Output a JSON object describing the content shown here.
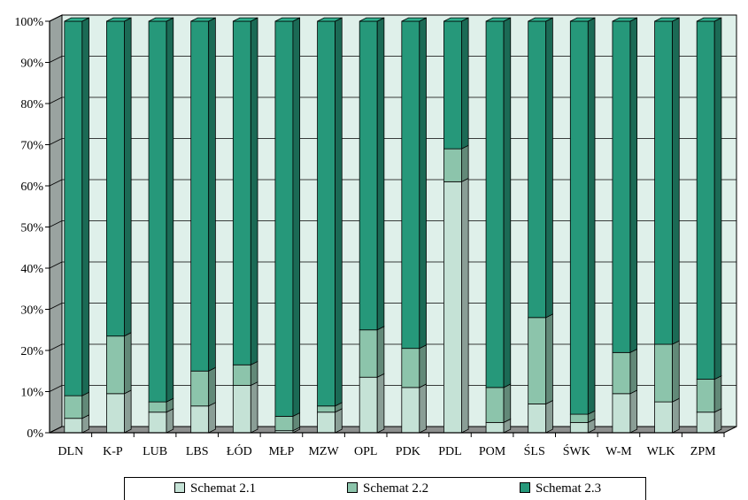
{
  "chart_data": {
    "type": "bar",
    "stacked": true,
    "three_d": true,
    "categories": [
      "DLN",
      "K-P",
      "LUB",
      "LBS",
      "ŁÓD",
      "MŁP",
      "MZW",
      "OPL",
      "PDK",
      "PDL",
      "POM",
      "ŚLS",
      "ŚWK",
      "W-M",
      "WLK",
      "ZPM"
    ],
    "series": [
      {
        "name": "Schemat 2.1",
        "color": "#c5e2d6",
        "values": [
          3.5,
          9.5,
          5,
          6.5,
          11.5,
          0.5,
          5,
          13.5,
          11,
          61,
          2.5,
          7,
          2.5,
          9.5,
          7.5,
          5
        ]
      },
      {
        "name": "Schemat 2.2",
        "color": "#8cc4ab",
        "values": [
          5.5,
          14,
          2.5,
          8.5,
          5,
          3.5,
          1.5,
          11.5,
          9.5,
          8,
          8.5,
          21,
          2,
          10,
          14,
          8
        ]
      },
      {
        "name": "Schemat 2.3",
        "color": "#26987a",
        "values": [
          91,
          76.5,
          92.5,
          85,
          83.5,
          96,
          93.5,
          75,
          79.5,
          31,
          89,
          72,
          95.5,
          80.5,
          78.5,
          87
        ]
      }
    ],
    "y_ticks": [
      "0%",
      "10%",
      "20%",
      "30%",
      "40%",
      "50%",
      "60%",
      "70%",
      "80%",
      "90%",
      "100%"
    ],
    "ylim": [
      0,
      100
    ],
    "grid": true,
    "plot_background": "#dff0ea",
    "legend": "bottom"
  }
}
